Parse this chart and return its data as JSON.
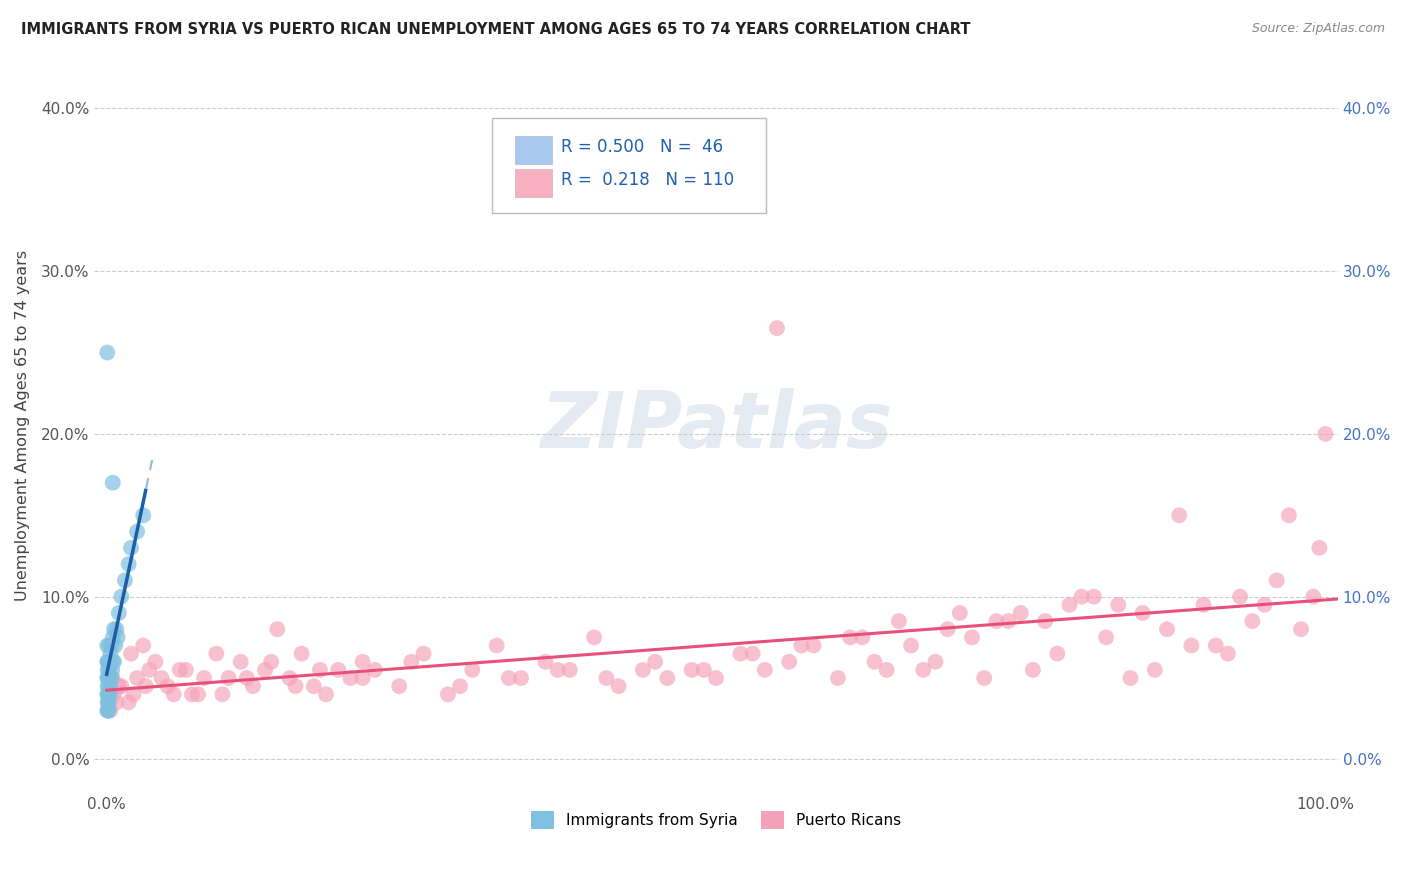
{
  "title": "IMMIGRANTS FROM SYRIA VS PUERTO RICAN UNEMPLOYMENT AMONG AGES 65 TO 74 YEARS CORRELATION CHART",
  "source": "Source: ZipAtlas.com",
  "ylabel": "Unemployment Among Ages 65 to 74 years",
  "ytick_vals": [
    0,
    10,
    20,
    30,
    40
  ],
  "ytick_labels": [
    "0.0%",
    "10.0%",
    "20.0%",
    "30.0%",
    "40.0%"
  ],
  "xlim": [
    -1,
    101
  ],
  "ylim": [
    -2,
    43
  ],
  "legend_entry1": {
    "R": "0.500",
    "N": "46",
    "color": "#a8c8f0"
  },
  "legend_entry2": {
    "R": "0.218",
    "N": "110",
    "color": "#f8b0c0"
  },
  "syria_color": "#7fbfdf",
  "pr_color": "#f4a0b8",
  "regression_syria_color": "#1a5fa8",
  "regression_pr_color": "#e8507a",
  "dashed_line_color": "#90b8e0",
  "grid_color": "#cccccc",
  "syria_x": [
    0.05,
    0.05,
    0.05,
    0.05,
    0.05,
    0.08,
    0.08,
    0.08,
    0.1,
    0.1,
    0.1,
    0.1,
    0.12,
    0.12,
    0.15,
    0.15,
    0.15,
    0.18,
    0.18,
    0.2,
    0.2,
    0.2,
    0.25,
    0.25,
    0.3,
    0.3,
    0.35,
    0.4,
    0.4,
    0.45,
    0.5,
    0.5,
    0.6,
    0.6,
    0.7,
    0.8,
    0.9,
    1.0,
    1.2,
    1.5,
    1.8,
    2.0,
    2.5,
    3.0,
    0.5,
    0.05
  ],
  "syria_y": [
    3.0,
    4.0,
    5.0,
    6.0,
    7.0,
    3.5,
    4.5,
    5.5,
    3.0,
    4.0,
    5.0,
    6.0,
    3.5,
    5.0,
    3.0,
    4.5,
    6.0,
    3.5,
    5.0,
    4.0,
    5.5,
    7.0,
    4.0,
    6.0,
    4.5,
    6.5,
    5.0,
    5.0,
    7.0,
    5.5,
    6.0,
    7.5,
    6.0,
    8.0,
    7.0,
    8.0,
    7.5,
    9.0,
    10.0,
    11.0,
    12.0,
    13.0,
    14.0,
    15.0,
    17.0,
    25.0
  ],
  "pr_x": [
    0.5,
    1.0,
    2.0,
    2.5,
    3.0,
    3.5,
    4.0,
    5.0,
    6.0,
    7.0,
    8.0,
    9.0,
    10.0,
    11.0,
    12.0,
    13.0,
    14.0,
    15.0,
    16.0,
    17.0,
    18.0,
    19.0,
    20.0,
    21.0,
    22.0,
    24.0,
    26.0,
    28.0,
    30.0,
    32.0,
    34.0,
    36.0,
    38.0,
    40.0,
    42.0,
    44.0,
    46.0,
    48.0,
    50.0,
    52.0,
    54.0,
    56.0,
    58.0,
    60.0,
    62.0,
    64.0,
    65.0,
    67.0,
    68.0,
    70.0,
    72.0,
    74.0,
    76.0,
    78.0,
    80.0,
    82.0,
    84.0,
    85.0,
    86.0,
    87.0,
    88.0,
    89.0,
    90.0,
    91.0,
    92.0,
    93.0,
    94.0,
    95.0,
    96.0,
    97.0,
    98.0,
    99.0,
    99.5,
    100.0,
    0.3,
    0.6,
    0.8,
    1.2,
    1.8,
    2.2,
    3.2,
    4.5,
    5.5,
    6.5,
    7.5,
    9.5,
    11.5,
    13.5,
    15.5,
    17.5,
    21.0,
    25.0,
    29.0,
    33.0,
    37.0,
    41.0,
    45.0,
    49.0,
    53.0,
    57.0,
    61.0,
    63.0,
    66.0,
    69.0,
    71.0,
    73.0,
    75.0,
    77.0,
    79.0,
    81.0,
    83.0
  ],
  "pr_y": [
    5.0,
    4.5,
    6.5,
    5.0,
    7.0,
    5.5,
    6.0,
    4.5,
    5.5,
    4.0,
    5.0,
    6.5,
    5.0,
    6.0,
    4.5,
    5.5,
    8.0,
    5.0,
    6.5,
    4.5,
    4.0,
    5.5,
    5.0,
    6.0,
    5.5,
    4.5,
    6.5,
    4.0,
    5.5,
    7.0,
    5.0,
    6.0,
    5.5,
    7.5,
    4.5,
    5.5,
    5.0,
    5.5,
    5.0,
    6.5,
    5.5,
    6.0,
    7.0,
    5.0,
    7.5,
    5.5,
    8.5,
    5.5,
    6.0,
    9.0,
    5.0,
    8.5,
    5.5,
    6.5,
    10.0,
    7.5,
    5.0,
    9.0,
    5.5,
    8.0,
    15.0,
    7.0,
    9.5,
    7.0,
    6.5,
    10.0,
    8.5,
    9.5,
    11.0,
    15.0,
    8.0,
    10.0,
    13.0,
    20.0,
    3.0,
    4.0,
    3.5,
    4.5,
    3.5,
    4.0,
    4.5,
    5.0,
    4.0,
    5.5,
    4.0,
    4.0,
    5.0,
    6.0,
    4.5,
    5.5,
    5.0,
    6.0,
    4.5,
    5.0,
    5.5,
    5.0,
    6.0,
    5.5,
    6.5,
    7.0,
    7.5,
    6.0,
    7.0,
    8.0,
    7.5,
    8.5,
    9.0,
    8.5,
    9.5,
    10.0,
    9.5
  ],
  "pr_extra_x": [
    55.0
  ],
  "pr_extra_y": [
    26.5
  ],
  "syria_reg_x0": 0.0,
  "syria_reg_x1": 3.5,
  "syria_dash_x0": -0.5,
  "syria_dash_x1": 3.5
}
